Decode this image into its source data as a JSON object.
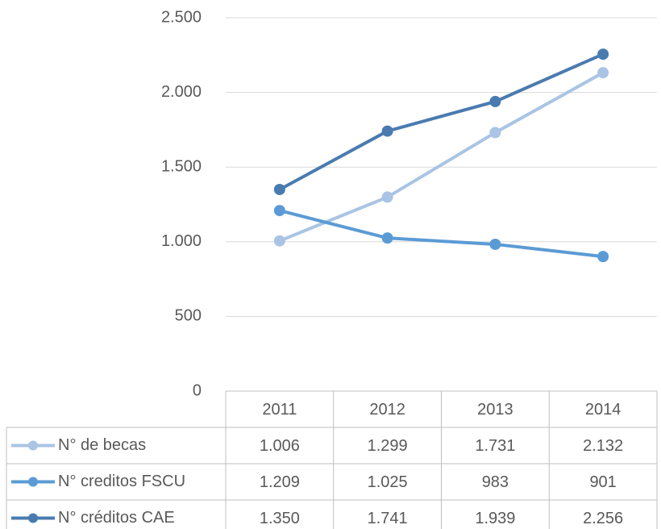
{
  "chart_data": {
    "type": "line",
    "categories": [
      "2011",
      "2012",
      "2013",
      "2014"
    ],
    "series": [
      {
        "name": "N° de becas",
        "color": "#a9c4e4",
        "values": [
          1006,
          1299,
          1731,
          2132
        ],
        "value_labels": [
          "1.006",
          "1.299",
          "1.731",
          "2.132"
        ]
      },
      {
        "name": "N° creditos FSCU",
        "color": "#5b9bd5",
        "values": [
          1209,
          1025,
          983,
          901
        ],
        "value_labels": [
          "1.209",
          "1.025",
          "983",
          "901"
        ]
      },
      {
        "name": "N° créditos CAE",
        "color": "#4a7bb0",
        "values": [
          1350,
          1741,
          1939,
          2256
        ],
        "value_labels": [
          "1.350",
          "1.741",
          "1.939",
          "2.256"
        ]
      }
    ],
    "ylim": [
      0,
      2500
    ],
    "yticks": [
      0,
      500,
      {
        "value": 1000,
        "label": "1.000"
      },
      {
        "value": 1500,
        "label": "1.500"
      },
      {
        "value": 2000,
        "label": "2.000"
      },
      {
        "value": 2500,
        "label": "2.500"
      }
    ],
    "grid": true
  }
}
